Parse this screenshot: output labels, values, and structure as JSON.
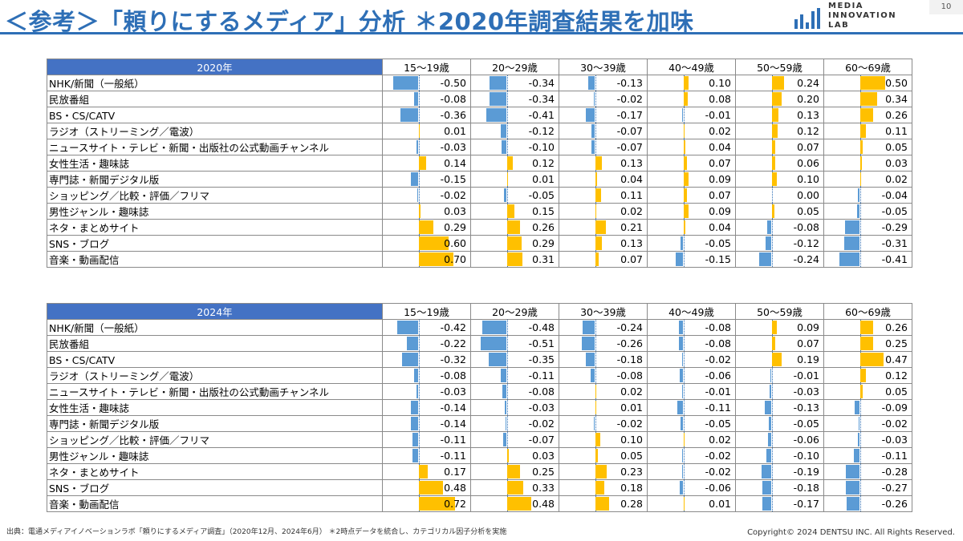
{
  "header": {
    "title": "＜参考＞「頼りにするメディア」分析 ＊2020年調査結果を加味",
    "logo_text_lines": [
      "MEDIA",
      "INNOVATION",
      "LAB"
    ],
    "page_number": "10"
  },
  "footer": {
    "source": "出典：電通メディアイノベーションラボ「頼りにするメディア調査」（2020年12月、2024年6月） ＊2時点データを統合し、カテゴリカル因子分析を実施",
    "copyright": "Copyright© 2024 DENTSU INC. All Rights Reserved."
  },
  "colors": {
    "positive": "#ffc000",
    "negative": "#5b9bd5",
    "year_header": "#4472c4",
    "title": "#2e6fb6"
  },
  "chart_data": [
    {
      "type": "table",
      "title": "2020年",
      "columns": [
        "15〜19歳",
        "20〜29歳",
        "30〜39歳",
        "40〜49歳",
        "50〜59歳",
        "60〜69歳"
      ],
      "rows": [
        {
          "label": "NHK/新聞（一般紙）",
          "values": [
            "-0.50",
            "-0.34",
            "-0.13",
            "0.10",
            "0.24",
            "0.50"
          ]
        },
        {
          "label": "民放番組",
          "values": [
            "-0.08",
            "-0.34",
            "-0.02",
            "0.08",
            "0.20",
            "0.34"
          ]
        },
        {
          "label": "BS・CS/CATV",
          "values": [
            "-0.36",
            "-0.41",
            "-0.17",
            "-0.01",
            "0.13",
            "0.26"
          ]
        },
        {
          "label": "ラジオ（ストリーミング／電波）",
          "values": [
            "0.01",
            "-0.12",
            "-0.07",
            "0.02",
            "0.12",
            "0.11"
          ]
        },
        {
          "label": "ニュースサイト・テレビ・新聞・出版社の公式動画チャンネル",
          "values": [
            "-0.03",
            "-0.10",
            "-0.07",
            "0.04",
            "0.07",
            "0.05"
          ]
        },
        {
          "label": "女性生活・趣味誌",
          "values": [
            "0.14",
            "0.12",
            "0.13",
            "0.07",
            "0.06",
            "0.03"
          ]
        },
        {
          "label": "専門誌・新聞デジタル版",
          "values": [
            "-0.15",
            "0.01",
            "0.04",
            "0.09",
            "0.10",
            "0.02"
          ]
        },
        {
          "label": "ショッピング／比較・評価／フリマ",
          "values": [
            "-0.02",
            "-0.05",
            "0.11",
            "0.07",
            "0.00",
            "-0.04"
          ]
        },
        {
          "label": "男性ジャンル・趣味誌",
          "values": [
            "0.03",
            "0.15",
            "0.02",
            "0.09",
            "0.05",
            "-0.05"
          ]
        },
        {
          "label": "ネタ・まとめサイト",
          "values": [
            "0.29",
            "0.26",
            "0.21",
            "0.04",
            "-0.08",
            "-0.29"
          ]
        },
        {
          "label": "SNS・ブログ",
          "values": [
            "0.60",
            "0.29",
            "0.13",
            "-0.05",
            "-0.12",
            "-0.31"
          ]
        },
        {
          "label": "音楽・動画配信",
          "values": [
            "0.70",
            "0.31",
            "0.07",
            "-0.15",
            "-0.24",
            "-0.41"
          ]
        }
      ]
    },
    {
      "type": "table",
      "title": "2024年",
      "columns": [
        "15〜19歳",
        "20〜29歳",
        "30〜39歳",
        "40〜49歳",
        "50〜59歳",
        "60〜69歳"
      ],
      "rows": [
        {
          "label": "NHK/新聞（一般紙）",
          "values": [
            "-0.42",
            "-0.48",
            "-0.24",
            "-0.08",
            "0.09",
            "0.26"
          ]
        },
        {
          "label": "民放番組",
          "values": [
            "-0.22",
            "-0.51",
            "-0.26",
            "-0.08",
            "0.07",
            "0.25"
          ]
        },
        {
          "label": "BS・CS/CATV",
          "values": [
            "-0.32",
            "-0.35",
            "-0.18",
            "-0.02",
            "0.19",
            "0.47"
          ]
        },
        {
          "label": "ラジオ（ストリーミング／電波）",
          "values": [
            "-0.08",
            "-0.11",
            "-0.08",
            "-0.06",
            "-0.01",
            "0.12"
          ]
        },
        {
          "label": "ニュースサイト・テレビ・新聞・出版社の公式動画チャンネル",
          "values": [
            "-0.03",
            "-0.08",
            "0.02",
            "-0.01",
            "-0.03",
            "0.05"
          ]
        },
        {
          "label": "女性生活・趣味誌",
          "values": [
            "-0.14",
            "-0.03",
            "0.01",
            "-0.11",
            "-0.13",
            "-0.09"
          ]
        },
        {
          "label": "専門誌・新聞デジタル版",
          "values": [
            "-0.14",
            "-0.02",
            "-0.02",
            "-0.05",
            "-0.05",
            "-0.02"
          ]
        },
        {
          "label": "ショッピング／比較・評価／フリマ",
          "values": [
            "-0.11",
            "-0.07",
            "0.10",
            "0.02",
            "-0.06",
            "-0.03"
          ]
        },
        {
          "label": "男性ジャンル・趣味誌",
          "values": [
            "-0.11",
            "0.03",
            "0.05",
            "-0.02",
            "-0.10",
            "-0.11"
          ]
        },
        {
          "label": "ネタ・まとめサイト",
          "values": [
            "0.17",
            "0.25",
            "0.23",
            "-0.02",
            "-0.19",
            "-0.28"
          ]
        },
        {
          "label": "SNS・ブログ",
          "values": [
            "0.48",
            "0.33",
            "0.18",
            "-0.06",
            "-0.18",
            "-0.27"
          ]
        },
        {
          "label": "音楽・動画配信",
          "values": [
            "0.72",
            "0.48",
            "0.28",
            "0.01",
            "-0.17",
            "-0.26"
          ]
        }
      ]
    }
  ]
}
